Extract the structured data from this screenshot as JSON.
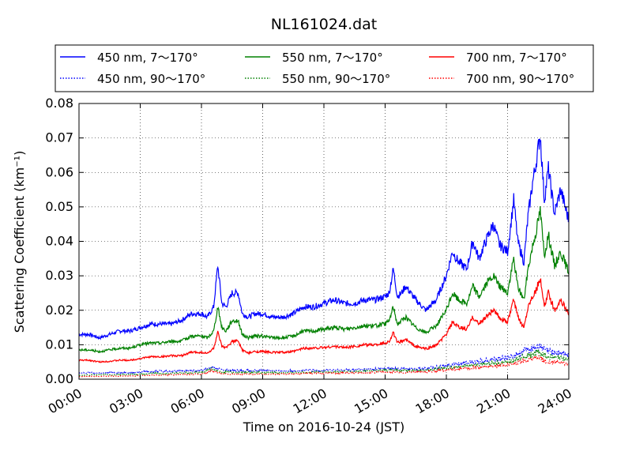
{
  "chart_data": {
    "type": "line",
    "title": "NL161024.dat",
    "xlabel": "Time on 2016-10-24 (JST)",
    "ylabel": "Scattering Coefficient (km⁻¹)",
    "xlim": [
      0,
      24
    ],
    "ylim": [
      0,
      0.08
    ],
    "x_ticks": [
      0,
      3,
      6,
      9,
      12,
      15,
      18,
      21,
      24
    ],
    "x_tick_labels": [
      "00:00",
      "03:00",
      "06:00",
      "09:00",
      "12:00",
      "15:00",
      "18:00",
      "21:00",
      "24:00"
    ],
    "y_ticks": [
      0,
      0.01,
      0.02,
      0.03,
      0.04,
      0.05,
      0.06,
      0.07,
      0.08
    ],
    "y_tick_labels": [
      "0.00",
      "0.01",
      "0.02",
      "0.03",
      "0.04",
      "0.05",
      "0.06",
      "0.07",
      "0.08"
    ],
    "grid": true,
    "legend_position": "top, above plot, three columns",
    "series": [
      {
        "name": "450 nm, 7～170°",
        "color": "#0000ff",
        "style": "solid",
        "x": [
          0,
          0.5,
          1,
          1.5,
          2,
          2.5,
          3,
          3.5,
          4,
          4.5,
          5,
          5.5,
          6,
          6.3,
          6.6,
          6.8,
          7,
          7.2,
          7.5,
          7.8,
          8,
          8.3,
          8.6,
          9,
          9.5,
          10,
          10.5,
          11,
          11.5,
          12,
          12.5,
          13,
          13.5,
          14,
          14.5,
          15,
          15.2,
          15.4,
          15.6,
          15.8,
          16,
          16.5,
          17,
          17.5,
          18,
          18.3,
          18.6,
          19,
          19.3,
          19.6,
          20,
          20.3,
          20.6,
          21,
          21.3,
          21.5,
          21.8,
          22,
          22.2,
          22.4,
          22.6,
          22.8,
          23,
          23.3,
          23.6,
          24
        ],
        "y": [
          0.013,
          0.013,
          0.012,
          0.013,
          0.014,
          0.014,
          0.015,
          0.016,
          0.016,
          0.016,
          0.017,
          0.019,
          0.019,
          0.018,
          0.021,
          0.033,
          0.022,
          0.021,
          0.025,
          0.025,
          0.019,
          0.018,
          0.019,
          0.019,
          0.018,
          0.018,
          0.019,
          0.021,
          0.021,
          0.022,
          0.023,
          0.022,
          0.022,
          0.023,
          0.023,
          0.024,
          0.025,
          0.032,
          0.024,
          0.025,
          0.027,
          0.023,
          0.02,
          0.023,
          0.03,
          0.037,
          0.034,
          0.032,
          0.04,
          0.035,
          0.041,
          0.045,
          0.039,
          0.037,
          0.052,
          0.04,
          0.034,
          0.047,
          0.056,
          0.063,
          0.071,
          0.052,
          0.061,
          0.048,
          0.055,
          0.046
        ]
      },
      {
        "name": "450 nm, 90～170°",
        "color": "#0000ff",
        "style": "dotted",
        "x": [
          0,
          2,
          4,
          6,
          6.5,
          7,
          8,
          10,
          12,
          14,
          15,
          16,
          17,
          18,
          19,
          20,
          21,
          22,
          22.5,
          23,
          24
        ],
        "y": [
          0.0018,
          0.0019,
          0.0023,
          0.0026,
          0.0035,
          0.0027,
          0.0025,
          0.0024,
          0.0026,
          0.0028,
          0.0031,
          0.003,
          0.0031,
          0.004,
          0.0048,
          0.0055,
          0.0062,
          0.0085,
          0.0095,
          0.008,
          0.0072
        ]
      },
      {
        "name": "550 nm, 7～170°",
        "color": "#008000",
        "style": "solid",
        "x": [
          0,
          0.5,
          1,
          1.5,
          2,
          2.5,
          3,
          3.5,
          4,
          4.5,
          5,
          5.5,
          6,
          6.3,
          6.6,
          6.8,
          7,
          7.2,
          7.5,
          7.8,
          8,
          8.3,
          8.6,
          9,
          9.5,
          10,
          10.5,
          11,
          11.5,
          12,
          12.5,
          13,
          13.5,
          14,
          14.5,
          15,
          15.2,
          15.4,
          15.6,
          15.8,
          16,
          16.5,
          17,
          17.5,
          18,
          18.3,
          18.6,
          19,
          19.3,
          19.6,
          20,
          20.3,
          20.6,
          21,
          21.3,
          21.5,
          21.8,
          22,
          22.2,
          22.4,
          22.6,
          22.8,
          23,
          23.3,
          23.6,
          24
        ],
        "y": [
          0.0085,
          0.0085,
          0.008,
          0.0085,
          0.009,
          0.009,
          0.01,
          0.0105,
          0.0105,
          0.011,
          0.011,
          0.0125,
          0.0125,
          0.012,
          0.014,
          0.021,
          0.015,
          0.014,
          0.017,
          0.017,
          0.013,
          0.012,
          0.0125,
          0.0125,
          0.012,
          0.012,
          0.0125,
          0.014,
          0.014,
          0.0145,
          0.015,
          0.0145,
          0.015,
          0.0155,
          0.0155,
          0.016,
          0.017,
          0.021,
          0.016,
          0.017,
          0.018,
          0.015,
          0.0135,
          0.0155,
          0.02,
          0.025,
          0.023,
          0.022,
          0.027,
          0.024,
          0.028,
          0.03,
          0.027,
          0.025,
          0.035,
          0.027,
          0.023,
          0.032,
          0.038,
          0.043,
          0.049,
          0.036,
          0.042,
          0.033,
          0.037,
          0.031
        ]
      },
      {
        "name": "550 nm, 90～170°",
        "color": "#008000",
        "style": "dotted",
        "x": [
          0,
          2,
          4,
          6,
          6.5,
          7,
          8,
          10,
          12,
          14,
          15,
          16,
          17,
          18,
          19,
          20,
          21,
          22,
          22.5,
          23,
          24
        ],
        "y": [
          0.0012,
          0.0013,
          0.0017,
          0.002,
          0.003,
          0.0021,
          0.002,
          0.0019,
          0.0021,
          0.0023,
          0.0026,
          0.0025,
          0.0026,
          0.0033,
          0.0039,
          0.0045,
          0.005,
          0.0068,
          0.0078,
          0.0064,
          0.0057
        ]
      },
      {
        "name": "700 nm, 7～170°",
        "color": "#ff0000",
        "style": "solid",
        "x": [
          0,
          0.5,
          1,
          1.5,
          2,
          2.5,
          3,
          3.5,
          4,
          4.5,
          5,
          5.5,
          6,
          6.3,
          6.6,
          6.8,
          7,
          7.2,
          7.5,
          7.8,
          8,
          8.3,
          8.6,
          9,
          9.5,
          10,
          10.5,
          11,
          11.5,
          12,
          12.5,
          13,
          13.5,
          14,
          14.5,
          15,
          15.2,
          15.4,
          15.6,
          15.8,
          16,
          16.5,
          17,
          17.5,
          18,
          18.3,
          18.6,
          19,
          19.3,
          19.6,
          20,
          20.3,
          20.6,
          21,
          21.3,
          21.5,
          21.8,
          22,
          22.2,
          22.4,
          22.6,
          22.8,
          23,
          23.3,
          23.6,
          24
        ],
        "y": [
          0.0055,
          0.0055,
          0.005,
          0.0052,
          0.0055,
          0.0055,
          0.006,
          0.0065,
          0.0065,
          0.0068,
          0.0068,
          0.0078,
          0.0078,
          0.0075,
          0.009,
          0.0135,
          0.0095,
          0.009,
          0.011,
          0.011,
          0.0085,
          0.0075,
          0.008,
          0.008,
          0.0078,
          0.0078,
          0.008,
          0.009,
          0.009,
          0.0092,
          0.0095,
          0.0092,
          0.0095,
          0.01,
          0.01,
          0.0105,
          0.011,
          0.0135,
          0.0105,
          0.011,
          0.0115,
          0.0095,
          0.0088,
          0.0098,
          0.013,
          0.0165,
          0.015,
          0.0145,
          0.018,
          0.016,
          0.0185,
          0.02,
          0.018,
          0.0165,
          0.023,
          0.018,
          0.015,
          0.021,
          0.024,
          0.026,
          0.029,
          0.021,
          0.025,
          0.02,
          0.023,
          0.019
        ]
      },
      {
        "name": "700 nm, 90～170°",
        "color": "#ff0000",
        "style": "dotted",
        "x": [
          0,
          2,
          4,
          6,
          6.5,
          7,
          8,
          10,
          12,
          14,
          15,
          16,
          17,
          18,
          19,
          20,
          21,
          22,
          22.5,
          23,
          24
        ],
        "y": [
          0.0008,
          0.0009,
          0.0012,
          0.0015,
          0.0024,
          0.0016,
          0.0015,
          0.0015,
          0.0017,
          0.0019,
          0.0021,
          0.002,
          0.0021,
          0.0027,
          0.0032,
          0.0037,
          0.0041,
          0.0055,
          0.0062,
          0.005,
          0.0045
        ]
      }
    ]
  }
}
